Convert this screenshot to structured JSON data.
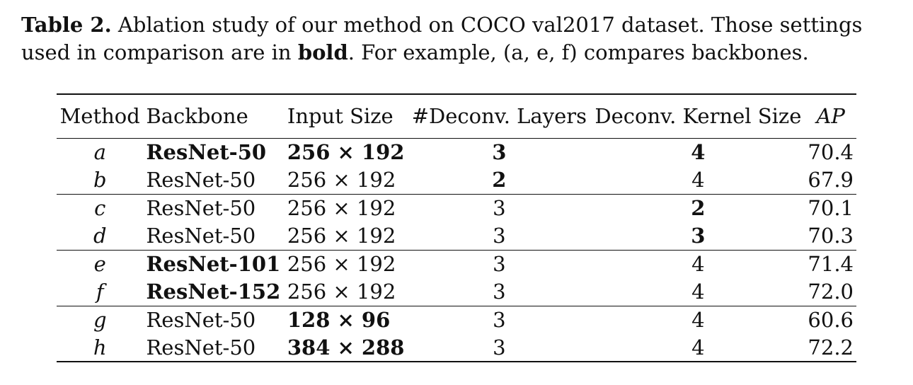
{
  "caption": {
    "label": "Table 2.",
    "text_1": " Ablation study of our method on COCO val2017 dataset. Those settings used in comparison are in ",
    "bold_word": "bold",
    "text_2": ". For example, (a, e, f) compares backbones."
  },
  "table": {
    "headers": [
      "Method",
      "Backbone",
      "Input Size",
      "#Deconv. Layers",
      "Deconv. Kernel Size",
      "AP"
    ],
    "rows": [
      {
        "method": "a",
        "backbone": "ResNet-50",
        "input": "256 × 192",
        "layers": "3",
        "kernel": "4",
        "ap": "70.4"
      },
      {
        "method": "b",
        "backbone": "ResNet-50",
        "input": "256 × 192",
        "layers": "2",
        "kernel": "4",
        "ap": "67.9"
      },
      {
        "method": "c",
        "backbone": "ResNet-50",
        "input": "256 × 192",
        "layers": "3",
        "kernel": "2",
        "ap": "70.1"
      },
      {
        "method": "d",
        "backbone": "ResNet-50",
        "input": "256 × 192",
        "layers": "3",
        "kernel": "3",
        "ap": "70.3"
      },
      {
        "method": "e",
        "backbone": "ResNet-101",
        "input": "256 × 192",
        "layers": "3",
        "kernel": "4",
        "ap": "71.4"
      },
      {
        "method": "f",
        "backbone": "ResNet-152",
        "input": "256 × 192",
        "layers": "3",
        "kernel": "4",
        "ap": "72.0"
      },
      {
        "method": "g",
        "backbone": "ResNet-50",
        "input": "128 × 96",
        "layers": "3",
        "kernel": "4",
        "ap": "60.6"
      },
      {
        "method": "h",
        "backbone": "ResNet-50",
        "input": "384 × 288",
        "layers": "3",
        "kernel": "4",
        "ap": "72.2"
      }
    ]
  }
}
